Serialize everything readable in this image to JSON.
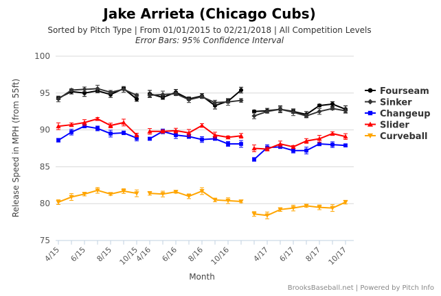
{
  "chart_data": {
    "type": "line",
    "title": "Jake Arrieta (Chicago Cubs)",
    "subtitle": "Sorted by Pitch Type | From 01/01/2015 to 02/21/2018 | All Competition Levels",
    "subtitle2": "Error Bars: 95% Confidence Interval",
    "xlabel": "Month",
    "ylabel": "Release Speed in MPH (from 55ft)",
    "ylim": [
      75,
      100
    ],
    "yticks": [
      75,
      80,
      85,
      90,
      95,
      100
    ],
    "grid": true,
    "legend_position": "right",
    "credit": "BrooksBaseball.net | Powered by Pitch Info",
    "months": [
      "4/15",
      "5/15",
      "6/15",
      "7/15",
      "8/15",
      "9/15",
      "10/15",
      "4/16",
      "5/16",
      "6/16",
      "7/16",
      "8/16",
      "9/16",
      "10/16",
      "11/16",
      "3/17",
      "4/17",
      "5/17",
      "6/17",
      "7/17",
      "8/17",
      "9/17",
      "10/17"
    ],
    "xtick_labels": [
      "4/15",
      "6/15",
      "8/15",
      "10/15",
      "4/16",
      "6/16",
      "8/16",
      "10/16",
      "4/17",
      "6/17",
      "8/17",
      "10/17"
    ],
    "series": [
      {
        "name": "Fourseam",
        "color": "#000000",
        "marker": "circle",
        "segments": [
          [
            [
              0,
              94.3
            ],
            [
              1,
              95.2
            ],
            [
              2,
              95.0
            ],
            [
              3,
              95.3
            ],
            [
              4,
              94.8
            ],
            [
              5,
              95.6
            ],
            [
              6,
              94.2
            ]
          ],
          [
            [
              7,
              94.9
            ],
            [
              8,
              94.4
            ],
            [
              9,
              95.1
            ],
            [
              10,
              94.2
            ],
            [
              11,
              94.6
            ],
            [
              12,
              93.3
            ],
            [
              13,
              93.9
            ],
            [
              14,
              95.4
            ]
          ],
          [
            [
              15,
              92.5
            ],
            [
              16,
              92.6
            ],
            [
              17,
              92.8
            ],
            [
              18,
              92.5
            ],
            [
              19,
              92.1
            ],
            [
              20,
              93.3
            ],
            [
              21,
              93.5
            ],
            [
              22,
              92.8
            ]
          ]
        ]
      },
      {
        "name": "Sinker",
        "color": "#333333",
        "marker": "diamond",
        "segments": [
          [
            [
              0,
              94.2
            ],
            [
              1,
              95.4
            ],
            [
              2,
              95.5
            ],
            [
              3,
              95.6
            ],
            [
              4,
              95.1
            ],
            [
              5,
              95.5
            ],
            [
              6,
              94.7
            ]
          ],
          [
            [
              7,
              94.7
            ],
            [
              8,
              94.8
            ],
            [
              9,
              94.9
            ],
            [
              10,
              94.1
            ],
            [
              11,
              94.5
            ],
            [
              12,
              93.7
            ],
            [
              13,
              93.8
            ],
            [
              14,
              94.0
            ]
          ],
          [
            [
              15,
              91.9
            ],
            [
              16,
              92.5
            ],
            [
              17,
              92.8
            ],
            [
              18,
              92.4
            ],
            [
              19,
              91.9
            ],
            [
              20,
              92.5
            ],
            [
              21,
              92.9
            ],
            [
              22,
              92.6
            ]
          ]
        ]
      },
      {
        "name": "Changeup",
        "color": "#0000ff",
        "marker": "square",
        "segments": [
          [
            [
              0,
              88.6
            ],
            [
              1,
              89.7
            ],
            [
              2,
              90.5
            ],
            [
              3,
              90.2
            ],
            [
              4,
              89.5
            ],
            [
              5,
              89.6
            ],
            [
              6,
              88.9
            ]
          ],
          [
            [
              7,
              88.8
            ],
            [
              8,
              89.8
            ],
            [
              9,
              89.3
            ],
            [
              10,
              89.1
            ],
            [
              11,
              88.7
            ],
            [
              12,
              88.8
            ],
            [
              13,
              88.1
            ],
            [
              14,
              88.1
            ]
          ],
          [
            [
              15,
              86.0
            ],
            [
              16,
              87.6
            ],
            [
              17,
              87.7
            ],
            [
              18,
              87.2
            ],
            [
              19,
              87.2
            ],
            [
              20,
              88.1
            ],
            [
              21,
              88.0
            ],
            [
              22,
              87.9
            ]
          ]
        ]
      },
      {
        "name": "Slider",
        "color": "#ff0000",
        "marker": "triangle",
        "segments": [
          [
            [
              0,
              90.5
            ],
            [
              1,
              90.7
            ],
            [
              2,
              91.0
            ],
            [
              3,
              91.5
            ],
            [
              4,
              90.6
            ],
            [
              5,
              91.0
            ],
            [
              6,
              89.3
            ]
          ],
          [
            [
              7,
              89.8
            ],
            [
              8,
              89.8
            ],
            [
              9,
              89.9
            ],
            [
              10,
              89.6
            ],
            [
              11,
              90.6
            ],
            [
              12,
              89.3
            ],
            [
              13,
              89.0
            ],
            [
              14,
              89.2
            ]
          ],
          [
            [
              15,
              87.5
            ],
            [
              16,
              87.4
            ],
            [
              17,
              88.1
            ],
            [
              18,
              87.7
            ],
            [
              19,
              88.5
            ],
            [
              20,
              88.8
            ],
            [
              21,
              89.5
            ],
            [
              22,
              89.1
            ]
          ]
        ]
      },
      {
        "name": "Curveball",
        "color": "#ffa500",
        "marker": "triangle-down",
        "segments": [
          [
            [
              0,
              80.2
            ],
            [
              1,
              80.9
            ],
            [
              2,
              81.3
            ],
            [
              3,
              81.8
            ],
            [
              4,
              81.3
            ],
            [
              5,
              81.7
            ],
            [
              6,
              81.4
            ]
          ],
          [
            [
              7,
              81.4
            ],
            [
              8,
              81.3
            ],
            [
              9,
              81.6
            ],
            [
              10,
              81.0
            ],
            [
              11,
              81.7
            ],
            [
              12,
              80.5
            ],
            [
              13,
              80.4
            ],
            [
              14,
              80.3
            ]
          ],
          [
            [
              15,
              78.6
            ],
            [
              16,
              78.4
            ],
            [
              17,
              79.2
            ],
            [
              18,
              79.4
            ],
            [
              19,
              79.7
            ],
            [
              20,
              79.5
            ],
            [
              21,
              79.4
            ],
            [
              22,
              80.2
            ]
          ]
        ]
      }
    ]
  }
}
